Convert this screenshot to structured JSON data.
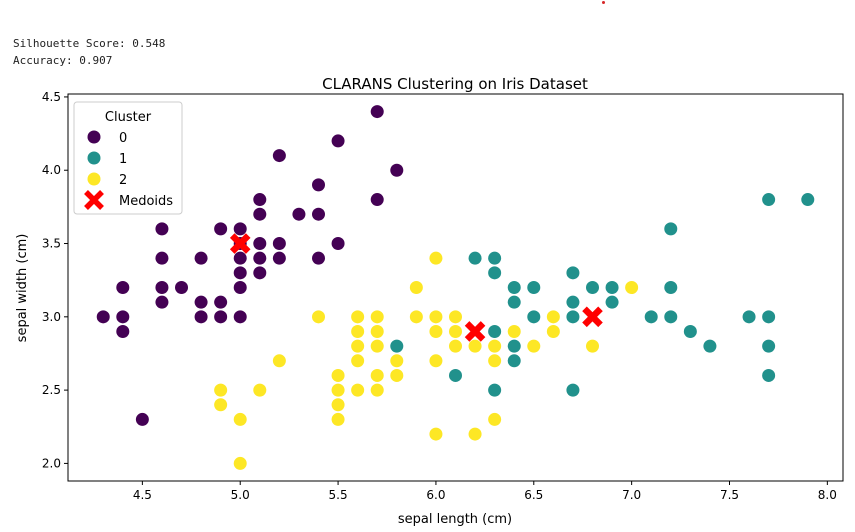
{
  "metrics": {
    "silhouette": "Silhouette Score: 0.548",
    "accuracy": "Accuracy: 0.907"
  },
  "colors": {
    "cluster0": "#440154",
    "cluster1": "#21918c",
    "cluster2": "#fde725",
    "medoid": "#ff0000"
  },
  "chart_data": {
    "type": "scatter",
    "title": "CLARANS Clustering on Iris Dataset",
    "xlabel": "sepal length (cm)",
    "ylabel": "sepal width (cm)",
    "xlim": [
      4.12,
      8.08
    ],
    "ylim": [
      1.88,
      4.52
    ],
    "xticks": [
      "4.5",
      "5.0",
      "5.5",
      "6.0",
      "6.5",
      "7.0",
      "7.5",
      "8.0"
    ],
    "yticks": [
      "2.0",
      "2.5",
      "3.0",
      "3.5",
      "4.0",
      "4.5"
    ],
    "grid": false,
    "legend": {
      "title": "Cluster",
      "position": "top-left",
      "entries": [
        "0",
        "1",
        "2",
        "Medoids"
      ]
    },
    "series": [
      {
        "name": "0",
        "color": "#440154",
        "points": [
          [
            4.3,
            3.0
          ],
          [
            4.4,
            2.9
          ],
          [
            4.4,
            3.0
          ],
          [
            4.4,
            3.2
          ],
          [
            4.5,
            2.3
          ],
          [
            4.6,
            3.1
          ],
          [
            4.6,
            3.2
          ],
          [
            4.6,
            3.4
          ],
          [
            4.6,
            3.6
          ],
          [
            4.7,
            3.2
          ],
          [
            4.8,
            3.0
          ],
          [
            4.8,
            3.1
          ],
          [
            4.8,
            3.4
          ],
          [
            4.9,
            3.0
          ],
          [
            4.9,
            3.1
          ],
          [
            4.9,
            3.6
          ],
          [
            5.0,
            3.0
          ],
          [
            5.0,
            3.2
          ],
          [
            5.0,
            3.3
          ],
          [
            5.0,
            3.4
          ],
          [
            5.0,
            3.5
          ],
          [
            5.0,
            3.6
          ],
          [
            5.1,
            3.3
          ],
          [
            5.1,
            3.4
          ],
          [
            5.1,
            3.5
          ],
          [
            5.1,
            3.7
          ],
          [
            5.1,
            3.8
          ],
          [
            5.2,
            3.4
          ],
          [
            5.2,
            3.5
          ],
          [
            5.2,
            4.1
          ],
          [
            5.3,
            3.7
          ],
          [
            5.4,
            3.4
          ],
          [
            5.4,
            3.7
          ],
          [
            5.4,
            3.9
          ],
          [
            5.5,
            3.5
          ],
          [
            5.5,
            4.2
          ],
          [
            5.7,
            3.8
          ],
          [
            5.7,
            4.4
          ],
          [
            5.8,
            4.0
          ]
        ]
      },
      {
        "name": "1",
        "color": "#21918c",
        "points": [
          [
            5.8,
            2.8
          ],
          [
            6.1,
            2.6
          ],
          [
            6.2,
            3.4
          ],
          [
            6.3,
            2.5
          ],
          [
            6.3,
            2.9
          ],
          [
            6.3,
            3.3
          ],
          [
            6.3,
            3.4
          ],
          [
            6.4,
            2.7
          ],
          [
            6.4,
            2.8
          ],
          [
            6.4,
            3.1
          ],
          [
            6.4,
            3.2
          ],
          [
            6.5,
            3.0
          ],
          [
            6.5,
            3.2
          ],
          [
            6.7,
            2.5
          ],
          [
            6.7,
            3.0
          ],
          [
            6.7,
            3.1
          ],
          [
            6.7,
            3.3
          ],
          [
            6.8,
            3.2
          ],
          [
            6.9,
            3.1
          ],
          [
            6.9,
            3.2
          ],
          [
            7.1,
            3.0
          ],
          [
            7.2,
            3.0
          ],
          [
            7.2,
            3.2
          ],
          [
            7.2,
            3.6
          ],
          [
            7.3,
            2.9
          ],
          [
            7.4,
            2.8
          ],
          [
            7.6,
            3.0
          ],
          [
            7.7,
            2.6
          ],
          [
            7.7,
            2.8
          ],
          [
            7.7,
            3.0
          ],
          [
            7.7,
            3.8
          ],
          [
            7.9,
            3.8
          ]
        ]
      },
      {
        "name": "2",
        "color": "#fde725",
        "points": [
          [
            4.9,
            2.4
          ],
          [
            4.9,
            2.5
          ],
          [
            5.0,
            2.0
          ],
          [
            5.0,
            2.3
          ],
          [
            5.1,
            2.5
          ],
          [
            5.2,
            2.7
          ],
          [
            5.4,
            3.0
          ],
          [
            5.5,
            2.3
          ],
          [
            5.5,
            2.4
          ],
          [
            5.5,
            2.5
          ],
          [
            5.5,
            2.6
          ],
          [
            5.6,
            2.5
          ],
          [
            5.6,
            2.7
          ],
          [
            5.6,
            2.8
          ],
          [
            5.6,
            2.9
          ],
          [
            5.6,
            3.0
          ],
          [
            5.7,
            2.5
          ],
          [
            5.7,
            2.6
          ],
          [
            5.7,
            2.8
          ],
          [
            5.7,
            2.9
          ],
          [
            5.7,
            3.0
          ],
          [
            5.8,
            2.6
          ],
          [
            5.8,
            2.7
          ],
          [
            5.9,
            3.0
          ],
          [
            5.9,
            3.2
          ],
          [
            6.0,
            2.2
          ],
          [
            6.0,
            2.7
          ],
          [
            6.0,
            2.9
          ],
          [
            6.0,
            3.0
          ],
          [
            6.0,
            3.4
          ],
          [
            6.1,
            2.8
          ],
          [
            6.1,
            2.9
          ],
          [
            6.1,
            3.0
          ],
          [
            6.2,
            2.2
          ],
          [
            6.2,
            2.8
          ],
          [
            6.3,
            2.3
          ],
          [
            6.3,
            2.7
          ],
          [
            6.3,
            2.8
          ],
          [
            6.4,
            2.9
          ],
          [
            6.5,
            2.8
          ],
          [
            6.6,
            2.9
          ],
          [
            6.6,
            3.0
          ],
          [
            6.8,
            2.8
          ],
          [
            7.0,
            3.2
          ]
        ]
      }
    ],
    "medoids": {
      "name": "Medoids",
      "color": "#ff0000",
      "points": [
        [
          5.0,
          3.5
        ],
        [
          6.2,
          2.9
        ],
        [
          6.8,
          3.0
        ]
      ]
    }
  }
}
